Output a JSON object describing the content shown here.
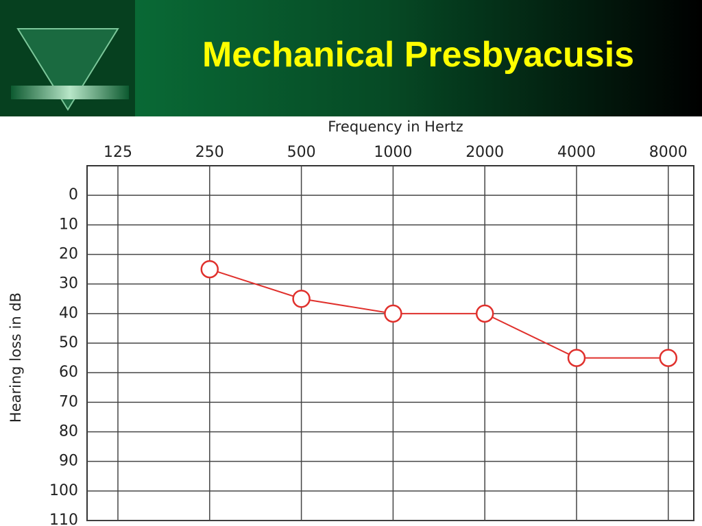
{
  "chart_data": {
    "type": "line",
    "title": "Mechanical Presbyacusis",
    "x_label": "Frequency in Hertz",
    "y_label": "Hearing loss in dB",
    "categories": [
      "125",
      "250",
      "500",
      "1000",
      "2000",
      "4000",
      "8000"
    ],
    "values": [
      null,
      25,
      35,
      40,
      40,
      55,
      55
    ],
    "color": "#e0302c",
    "ylim": [
      -10,
      110
    ],
    "y_inverted": true,
    "yticks": [
      0,
      10,
      20,
      30,
      40,
      50,
      60,
      70,
      80,
      90,
      100,
      110
    ],
    "grid": true
  }
}
